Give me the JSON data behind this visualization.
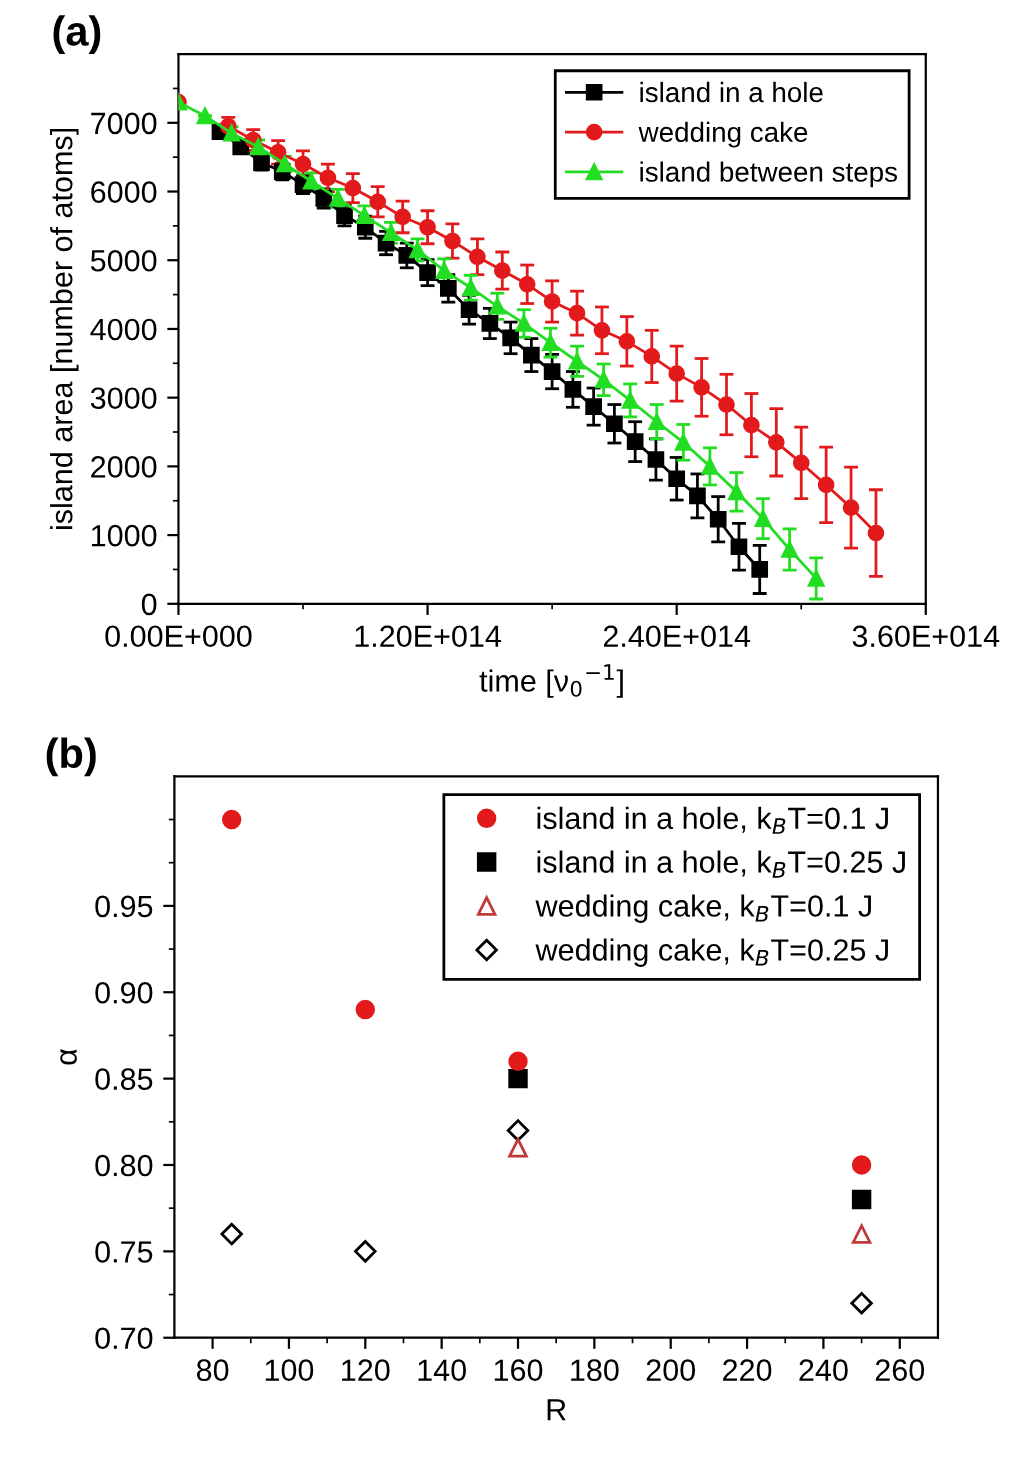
{
  "chart_data": [
    {
      "type": "line",
      "title": "(a)",
      "xlabel": "time [ν$_{0}$$^{−1}$]",
      "ylabel": "island area [number of atoms]",
      "xlim": [
        0,
        360000000000000.0
      ],
      "xticks": [
        {
          "value": 0,
          "label": "0.00E+000"
        },
        {
          "value": 60000000000000.0,
          "label": null
        },
        {
          "value": 120000000000000.0,
          "label": "1.20E+014"
        },
        {
          "value": 180000000000000.0,
          "label": null
        },
        {
          "value": 240000000000000.0,
          "label": "2.40E+014"
        },
        {
          "value": 300000000000000.0,
          "label": null
        },
        {
          "value": 360000000000000.0,
          "label": "3.60E+014"
        }
      ],
      "ylim": [
        0,
        8000
      ],
      "yticks": [
        0,
        {
          "value": 500,
          "label": null
        },
        1000,
        {
          "value": 1500,
          "label": null
        },
        2000,
        {
          "value": 2500,
          "label": null
        },
        3000,
        {
          "value": 3500,
          "label": null
        },
        4000,
        {
          "value": 4500,
          "label": null
        },
        5000,
        {
          "value": 5500,
          "label": null
        },
        6000,
        {
          "value": 6500,
          "label": null
        },
        7000,
        {
          "value": 7500,
          "label": null
        }
      ],
      "grid": false,
      "legend": "top right",
      "line_style": "solid",
      "series": [
        {
          "name": "island in a hole",
          "color": "#000000",
          "marker": "square",
          "x": [
            20000000000000.0,
            30000000000000.0,
            40000000000000.0,
            50000000000000.0,
            60000000000000.0,
            70000000000000.0,
            80000000000000.0,
            90000000000000.0,
            100000000000000.0,
            110000000000000.0,
            120000000000000.0,
            130000000000000.0,
            140000000000000.0,
            150000000000000.0,
            160000000000000.0,
            170000000000000.0,
            180000000000000.0,
            190000000000000.0,
            200000000000000.0,
            210000000000000.0,
            220000000000000.0,
            230000000000000.0,
            240000000000000.0,
            250000000000000.0,
            260000000000000.0,
            270000000000000.0,
            280000000000000.0
          ],
          "values": [
            6870,
            6650,
            6420,
            6290,
            6100,
            5900,
            5650,
            5480,
            5250,
            5070,
            4820,
            4590,
            4280,
            4080,
            3870,
            3620,
            3380,
            3120,
            2870,
            2620,
            2360,
            2100,
            1820,
            1570,
            1230,
            830,
            500
          ],
          "errors": [
            90,
            100,
            110,
            120,
            130,
            140,
            150,
            160,
            170,
            180,
            190,
            200,
            210,
            220,
            230,
            240,
            250,
            260,
            270,
            280,
            290,
            300,
            310,
            320,
            330,
            340,
            350
          ]
        },
        {
          "name": "wedding cake",
          "color": "#e31a1c",
          "marker": "circle",
          "x": [
            0,
            12000000000000.0,
            24000000000000.0,
            36000000000000.0,
            48000000000000.0,
            60000000000000.0,
            72000000000000.0,
            84000000000000.0,
            96000000000000.0,
            108000000000000.0,
            120000000000000.0,
            132000000000000.0,
            144000000000000.0,
            156000000000000.0,
            168000000000000.0,
            180000000000000.0,
            192000000000000.0,
            204000000000000.0,
            216000000000000.0,
            228000000000000.0,
            240000000000000.0,
            252000000000000.0,
            264000000000000.0,
            276000000000000.0,
            288000000000000.0,
            300000000000000.0,
            312000000000000.0,
            324000000000000.0,
            336000000000000.0
          ],
          "values": [
            7300,
            null,
            6950,
            6750,
            6570,
            6400,
            6200,
            6050,
            5850,
            5630,
            5480,
            5280,
            5050,
            4850,
            4650,
            4400,
            4230,
            3980,
            3820,
            3600,
            3350,
            3150,
            2900,
            2600,
            2350,
            2050,
            1730,
            1400,
            1030
          ],
          "errors": [
            null,
            null,
            130,
            150,
            170,
            190,
            200,
            210,
            220,
            230,
            240,
            250,
            260,
            270,
            280,
            300,
            320,
            340,
            360,
            380,
            400,
            420,
            440,
            460,
            490,
            520,
            550,
            590,
            630
          ]
        },
        {
          "name": "island between steps",
          "color": "#22dd22",
          "marker": "triangle",
          "x": [
            0,
            12800000000000.0,
            25600000000000.0,
            38400000000000.0,
            51200000000000.0,
            64000000000000.0,
            76800000000000.0,
            89600000000000.0,
            102400000000000.0,
            115200000000000.0,
            128000000000000.0,
            140800000000000.0,
            153600000000000.0,
            166400000000000.0,
            179200000000000.0,
            192000000000000.0,
            204800000000000.0,
            217600000000000.0,
            230400000000000.0,
            243200000000000.0,
            256000000000000.0,
            268800000000000.0,
            281600000000000.0,
            294400000000000.0,
            307200000000000.0
          ],
          "values": [
            7300,
            7100,
            6850,
            6650,
            6400,
            6150,
            5900,
            5650,
            5400,
            5150,
            4850,
            4600,
            4330,
            4080,
            3800,
            3530,
            3260,
            2960,
            2650,
            2350,
            2000,
            1630,
            1240,
            790,
            370
          ],
          "errors": [
            null,
            null,
            90,
            100,
            110,
            120,
            130,
            140,
            150,
            160,
            170,
            180,
            190,
            200,
            210,
            220,
            230,
            240,
            250,
            260,
            270,
            280,
            290,
            300,
            300
          ]
        }
      ]
    },
    {
      "type": "scatter",
      "title": "(b)",
      "xlabel": "R",
      "ylabel": "α",
      "xlim": [
        70,
        270
      ],
      "xticks": [
        80,
        {
          "value": 90,
          "label": null
        },
        100,
        {
          "value": 110,
          "label": null
        },
        120,
        {
          "value": 130,
          "label": null
        },
        140,
        {
          "value": 150,
          "label": null
        },
        160,
        {
          "value": 170,
          "label": null
        },
        180,
        {
          "value": 190,
          "label": null
        },
        200,
        {
          "value": 210,
          "label": null
        },
        220,
        {
          "value": 230,
          "label": null
        },
        240,
        {
          "value": 250,
          "label": null
        },
        260
      ],
      "ylim": [
        0.7,
        1.025
      ],
      "yticks": [
        {
          "value": 0.7,
          "label": "0.70"
        },
        {
          "value": 0.725,
          "label": null
        },
        {
          "value": 0.75,
          "label": "0.75"
        },
        {
          "value": 0.775,
          "label": null
        },
        {
          "value": 0.8,
          "label": "0.80"
        },
        {
          "value": 0.825,
          "label": null
        },
        {
          "value": 0.85,
          "label": "0.85"
        },
        {
          "value": 0.875,
          "label": null
        },
        {
          "value": 0.9,
          "label": "0.90"
        },
        {
          "value": 0.925,
          "label": null
        },
        {
          "value": 0.95,
          "label": "0.95"
        },
        {
          "value": 0.975,
          "label": null
        },
        {
          "value": 1.0,
          "label": null
        }
      ],
      "grid": false,
      "legend": "top right",
      "x": [
        85,
        120,
        160,
        250
      ],
      "series": [
        {
          "name": "island in a hole, k$_{B}$T=0.1 J",
          "color": "#e31a1c",
          "marker": "circle",
          "values": [
            1.0,
            0.89,
            0.86,
            0.8
          ]
        },
        {
          "name": "island in a hole, k$_{B}$T=0.25 J",
          "color": "#000000",
          "marker": "square",
          "values": [
            null,
            null,
            0.85,
            0.78
          ]
        },
        {
          "name": "wedding cake, k$_{B}$T=0.1 J",
          "color": "#c0393b",
          "marker": "triangle",
          "values": [
            null,
            null,
            0.81,
            0.76
          ]
        },
        {
          "name": "wedding cake, k$_{B}$T=0.25 J",
          "color": "#000000",
          "marker": "diamond",
          "values": [
            0.76,
            0.75,
            0.82,
            0.72
          ]
        }
      ]
    }
  ]
}
